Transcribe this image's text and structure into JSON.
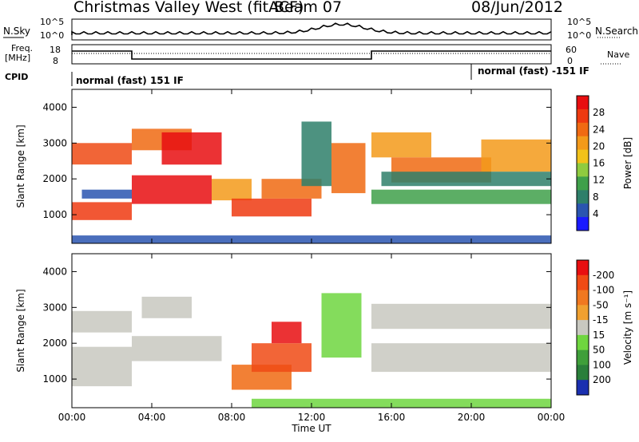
{
  "header": {
    "station": "Christmas Valley West (fitACF)",
    "beam": "Beam 07",
    "date": "08/Jun/2012"
  },
  "strip": {
    "nsky_label": "N.Sky",
    "nsearch_label": "N.Search",
    "noise_ticks": [
      "10^5",
      "10^0"
    ],
    "freq_label": "Freq.",
    "freq_unit": "[MHz]",
    "freq_ticks": [
      "18",
      "8"
    ],
    "nave_label": "Nave",
    "nave_ticks": [
      "60",
      "0"
    ],
    "cpid_label": "CPID",
    "cpid_left": "normal (fast) 151 IF",
    "cpid_right": "normal (fast) -151 IF"
  },
  "chart_data": [
    {
      "type": "heatmap",
      "name": "power",
      "ylabel": "Slant Range [km]",
      "x_ticks": [
        "00:00",
        "04:00",
        "08:00",
        "12:00",
        "16:00",
        "20:00",
        "00:00"
      ],
      "y_ticks": [
        1000,
        2000,
        3000,
        4000
      ],
      "ylim": [
        200,
        4500
      ],
      "xlim_hours": [
        0,
        24
      ],
      "colorbar": {
        "label": "Power [dB]",
        "ticks": [
          4,
          8,
          12,
          16,
          20,
          24,
          28
        ],
        "colors": [
          "#1a1aff",
          "#2a55b0",
          "#2e7f6a",
          "#3fa04a",
          "#8fcb3f",
          "#f2c21a",
          "#f39a1a",
          "#f06a12",
          "#ee3a10",
          "#e80e10"
        ]
      },
      "bands": [
        {
          "x0": 0.0,
          "x1": 3.0,
          "y0": 2400,
          "y1": 3000,
          "color": "#ee4a14"
        },
        {
          "x0": 0.0,
          "x1": 3.0,
          "y0": 850,
          "y1": 1350,
          "color": "#ee3a10"
        },
        {
          "x0": 0.5,
          "x1": 3.0,
          "y0": 1450,
          "y1": 1700,
          "color": "#2a55b0"
        },
        {
          "x0": 3.0,
          "x1": 6.0,
          "y0": 2800,
          "y1": 3400,
          "color": "#f06a12"
        },
        {
          "x0": 4.5,
          "x1": 7.5,
          "y0": 2400,
          "y1": 3300,
          "color": "#e80e10"
        },
        {
          "x0": 3.0,
          "x1": 7.0,
          "y0": 1300,
          "y1": 2100,
          "color": "#e80e10"
        },
        {
          "x0": 7.0,
          "x1": 9.0,
          "y0": 1400,
          "y1": 2000,
          "color": "#f39a1a"
        },
        {
          "x0": 8.0,
          "x1": 12.0,
          "y0": 950,
          "y1": 1450,
          "color": "#ee3a10"
        },
        {
          "x0": 9.5,
          "x1": 12.5,
          "y0": 1450,
          "y1": 2000,
          "color": "#f06a12"
        },
        {
          "x0": 11.5,
          "x1": 13.0,
          "y0": 1800,
          "y1": 3600,
          "color": "#2e7f6a"
        },
        {
          "x0": 13.0,
          "x1": 14.7,
          "y0": 1600,
          "y1": 3000,
          "color": "#f06a12"
        },
        {
          "x0": 15.0,
          "x1": 18.0,
          "y0": 2600,
          "y1": 3300,
          "color": "#f39a1a"
        },
        {
          "x0": 16.0,
          "x1": 21.0,
          "y0": 1900,
          "y1": 2600,
          "color": "#f06a12"
        },
        {
          "x0": 20.5,
          "x1": 24.0,
          "y0": 2200,
          "y1": 3100,
          "color": "#f39a1a"
        },
        {
          "x0": 15.0,
          "x1": 24.0,
          "y0": 1300,
          "y1": 1700,
          "color": "#3fa04a"
        },
        {
          "x0": 15.5,
          "x1": 24.0,
          "y0": 1800,
          "y1": 2200,
          "color": "#2e7f6a"
        },
        {
          "x0": 0.0,
          "x1": 24.0,
          "y0": 200,
          "y1": 420,
          "color": "#2a55b0"
        }
      ]
    },
    {
      "type": "heatmap",
      "name": "velocity",
      "ylabel": "Slant Range [km]",
      "xlabel": "Time UT",
      "x_ticks": [
        "00:00",
        "04:00",
        "08:00",
        "12:00",
        "16:00",
        "20:00",
        "00:00"
      ],
      "y_ticks": [
        1000,
        2000,
        3000,
        4000
      ],
      "ylim": [
        200,
        4500
      ],
      "xlim_hours": [
        0,
        24
      ],
      "colorbar": {
        "label": "Velocity [m s⁻¹]",
        "ticks": [
          "200",
          "100",
          "50",
          "15",
          "-15",
          "-50",
          "-100",
          "-200"
        ],
        "colors": [
          "#1a2fb0",
          "#2a7f3a",
          "#3f9f3a",
          "#6fd63f",
          "#c8c8c0",
          "#f0a030",
          "#f07820",
          "#f04a14",
          "#e80e10"
        ]
      },
      "bands": [
        {
          "x0": 0.0,
          "x1": 3.0,
          "y0": 2300,
          "y1": 2900,
          "color": "#c8c8c0"
        },
        {
          "x0": 0.0,
          "x1": 3.0,
          "y0": 800,
          "y1": 1900,
          "color": "#c8c8c0"
        },
        {
          "x0": 3.0,
          "x1": 7.5,
          "y0": 1500,
          "y1": 2200,
          "color": "#c8c8c0"
        },
        {
          "x0": 3.5,
          "x1": 6.0,
          "y0": 2700,
          "y1": 3300,
          "color": "#c8c8c0"
        },
        {
          "x0": 8.0,
          "x1": 11.0,
          "y0": 700,
          "y1": 1400,
          "color": "#f06a12"
        },
        {
          "x0": 9.0,
          "x1": 12.0,
          "y0": 1200,
          "y1": 2000,
          "color": "#f04a14"
        },
        {
          "x0": 10.0,
          "x1": 11.5,
          "y0": 2000,
          "y1": 2600,
          "color": "#e80e10"
        },
        {
          "x0": 12.5,
          "x1": 14.5,
          "y0": 1600,
          "y1": 3400,
          "color": "#6fd63f"
        },
        {
          "x0": 15.0,
          "x1": 24.0,
          "y0": 2400,
          "y1": 3100,
          "color": "#c8c8c0"
        },
        {
          "x0": 15.0,
          "x1": 24.0,
          "y0": 1200,
          "y1": 2000,
          "color": "#c8c8c0"
        },
        {
          "x0": 9.0,
          "x1": 24.0,
          "y0": 200,
          "y1": 450,
          "color": "#6fd63f"
        }
      ]
    }
  ]
}
